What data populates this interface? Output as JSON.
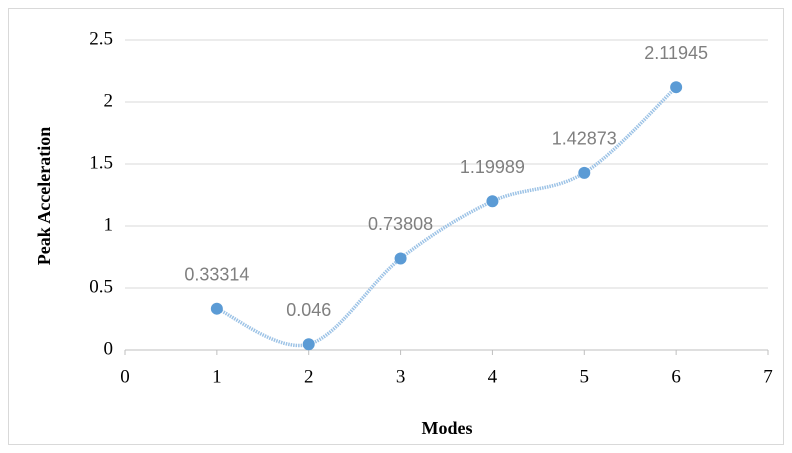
{
  "chart_data": {
    "type": "scatter",
    "smooth": true,
    "x_label": "Modes",
    "y_label": "Peak Acceleration",
    "series": [
      {
        "name": "Peak Acceleration",
        "color": "#5b9bd5",
        "x": [
          1,
          2,
          3,
          4,
          5,
          6
        ],
        "values": [
          0.33314,
          0.046,
          0.73808,
          1.19989,
          1.42873,
          2.11945
        ]
      }
    ],
    "xlim": [
      0,
      7
    ],
    "xticks": [
      0,
      1,
      2,
      3,
      4,
      5,
      6,
      7
    ],
    "ylim": [
      0,
      2.5
    ],
    "yticks": [
      0,
      0.5,
      1,
      1.5,
      2,
      2.5
    ],
    "grid": true
  }
}
